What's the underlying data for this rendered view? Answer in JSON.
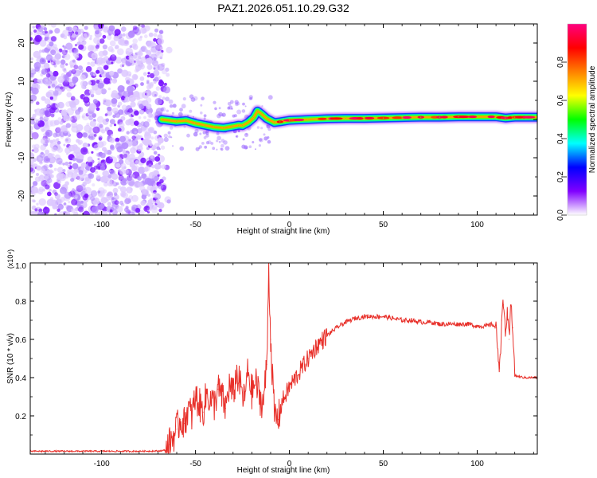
{
  "figure_title": "PAZ1.2026.051.10.29.G32",
  "chart_data": [
    {
      "type": "heatmap",
      "title": "PAZ1.2026.051.10.29.G32",
      "xlabel": "Height of straight line (km)",
      "ylabel": "Frequency (Hz)",
      "xlim": [
        -138,
        132
      ],
      "ylim": [
        -25,
        25
      ],
      "x_ticks": [
        -100,
        -50,
        0,
        50,
        100
      ],
      "y_ticks": [
        -20,
        -10,
        0,
        10,
        20
      ],
      "noise_region_x": [
        -138,
        -68
      ],
      "ridge_points": [
        [
          -68,
          0
        ],
        [
          -60,
          -0.5
        ],
        [
          -55,
          -0.3
        ],
        [
          -50,
          -1.0
        ],
        [
          -45,
          -1.5
        ],
        [
          -40,
          -2.0
        ],
        [
          -35,
          -2.2
        ],
        [
          -30,
          -1.8
        ],
        [
          -27,
          -1.5
        ],
        [
          -25,
          -1.6
        ],
        [
          -22,
          -0.8
        ],
        [
          -19,
          0.5
        ],
        [
          -17,
          2.2
        ],
        [
          -15,
          1.5
        ],
        [
          -12,
          0.2
        ],
        [
          -8,
          -0.8
        ],
        [
          -5,
          -0.6
        ],
        [
          0,
          -0.2
        ],
        [
          10,
          0.0
        ],
        [
          20,
          0.2
        ],
        [
          30,
          0.3
        ],
        [
          40,
          0.3
        ],
        [
          50,
          0.4
        ],
        [
          60,
          0.5
        ],
        [
          70,
          0.6
        ],
        [
          80,
          0.6
        ],
        [
          90,
          0.7
        ],
        [
          100,
          0.7
        ],
        [
          110,
          0.7
        ],
        [
          115,
          0.4
        ],
        [
          120,
          0.6
        ],
        [
          132,
          0.6
        ]
      ],
      "colorbar": {
        "label": "Normalized spectral amplitude",
        "range": [
          0,
          1
        ],
        "ticks": [
          0.0,
          0.2,
          0.4,
          0.6,
          0.8
        ],
        "tick_labels": [
          "0.0",
          "0.2",
          "0.4",
          "0.6",
          "0.8"
        ],
        "stops": [
          "#ffffff",
          "#8000ff",
          "#0000ff",
          "#00ffff",
          "#00ff00",
          "#ffff00",
          "#ff8000",
          "#ff0000",
          "#ff0080"
        ]
      }
    },
    {
      "type": "line",
      "ylabel": "SNR (10 * v/v)",
      "xlabel": "Height of straight line (km)",
      "y_multiplier": "(x10⁴)",
      "xlim": [
        -138,
        132
      ],
      "ylim": [
        0,
        1.0
      ],
      "x_ticks": [
        -100,
        -50,
        0,
        50,
        100
      ],
      "y_ticks": [
        0.2,
        0.4,
        0.6,
        0.8,
        1.0
      ],
      "y_tick_labels": [
        "0.2",
        "0.4",
        "0.6",
        "0.8",
        "1.0"
      ],
      "series": [
        {
          "name": "SNR",
          "color": "#e8302a",
          "x": [
            -138,
            -120,
            -100,
            -80,
            -70,
            -66,
            -64,
            -62,
            -60,
            -58,
            -56,
            -54,
            -52,
            -50,
            -48,
            -46,
            -44,
            -42,
            -40,
            -38,
            -36,
            -34,
            -32,
            -30,
            -28,
            -26,
            -24,
            -22,
            -20,
            -18,
            -16,
            -14,
            -12,
            -11,
            -10,
            -8,
            -6,
            -4,
            -2,
            0,
            2,
            4,
            6,
            8,
            10,
            12,
            14,
            16,
            18,
            20,
            25,
            30,
            35,
            40,
            45,
            50,
            55,
            60,
            65,
            70,
            75,
            80,
            85,
            90,
            95,
            100,
            105,
            108,
            110,
            112,
            113,
            114,
            115,
            116,
            117,
            118,
            119,
            120,
            125,
            132
          ],
          "y": [
            0.015,
            0.015,
            0.015,
            0.015,
            0.016,
            0.02,
            0.05,
            0.09,
            0.13,
            0.18,
            0.16,
            0.24,
            0.2,
            0.3,
            0.26,
            0.22,
            0.32,
            0.28,
            0.26,
            0.34,
            0.3,
            0.24,
            0.36,
            0.31,
            0.42,
            0.35,
            0.28,
            0.44,
            0.32,
            0.38,
            0.3,
            0.26,
            0.47,
            1.0,
            0.6,
            0.2,
            0.18,
            0.27,
            0.31,
            0.35,
            0.38,
            0.41,
            0.44,
            0.47,
            0.5,
            0.53,
            0.56,
            0.58,
            0.6,
            0.62,
            0.66,
            0.69,
            0.71,
            0.72,
            0.72,
            0.72,
            0.71,
            0.7,
            0.7,
            0.69,
            0.69,
            0.68,
            0.68,
            0.68,
            0.68,
            0.67,
            0.67,
            0.68,
            0.66,
            0.45,
            0.7,
            0.78,
            0.65,
            0.72,
            0.6,
            0.78,
            0.66,
            0.41,
            0.4,
            0.4
          ]
        }
      ]
    }
  ]
}
